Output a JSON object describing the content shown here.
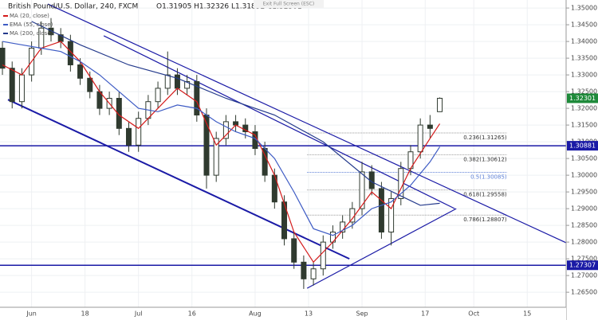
{
  "chart_data": {
    "type": "candlestick",
    "title": "British Pound/U.S. Dollar, 240, FXCM",
    "ohlc_header": "O1.31905 H1.32326 L1.31892 C1.32301",
    "button": "Exit Full Screen (ESC)",
    "x": [
      -6,
      -4,
      -2,
      0,
      2,
      4,
      6,
      8,
      10,
      12,
      14,
      16,
      18,
      20,
      22,
      24,
      26,
      28,
      30,
      32,
      34,
      36,
      38,
      40,
      42,
      44,
      46,
      48,
      50,
      52,
      54,
      56,
      58,
      60,
      62,
      64,
      66,
      68,
      70,
      72,
      74,
      76,
      78,
      80,
      82,
      84
    ],
    "open": [
      1.338,
      1.332,
      1.322,
      1.33,
      1.338,
      1.344,
      1.342,
      1.34,
      1.333,
      1.329,
      1.325,
      1.32,
      1.323,
      1.314,
      1.309,
      1.317,
      1.322,
      1.326,
      1.33,
      1.326,
      1.328,
      1.318,
      1.3,
      1.311,
      1.316,
      1.315,
      1.313,
      1.308,
      1.3,
      1.292,
      1.281,
      1.274,
      1.269,
      1.272,
      1.28,
      1.283,
      1.286,
      1.29,
      1.301,
      1.296,
      1.283,
      1.293,
      1.302,
      1.307,
      1.315,
      1.319
    ],
    "high": [
      1.34,
      1.334,
      1.332,
      1.34,
      1.346,
      1.347,
      1.344,
      1.342,
      1.335,
      1.331,
      1.327,
      1.325,
      1.325,
      1.316,
      1.319,
      1.324,
      1.328,
      1.337,
      1.332,
      1.33,
      1.33,
      1.32,
      1.313,
      1.318,
      1.318,
      1.317,
      1.315,
      1.31,
      1.302,
      1.294,
      1.283,
      1.276,
      1.274,
      1.282,
      1.285,
      1.288,
      1.292,
      1.304,
      1.303,
      1.298,
      1.295,
      1.304,
      1.309,
      1.317,
      1.318,
      1.32326
    ],
    "low": [
      1.33,
      1.32,
      1.32,
      1.328,
      1.336,
      1.34,
      1.338,
      1.331,
      1.327,
      1.323,
      1.318,
      1.318,
      1.312,
      1.307,
      1.307,
      1.315,
      1.32,
      1.324,
      1.324,
      1.324,
      1.316,
      1.296,
      1.298,
      1.309,
      1.313,
      1.311,
      1.306,
      1.298,
      1.29,
      1.279,
      1.272,
      1.266,
      1.267,
      1.27,
      1.278,
      1.281,
      1.284,
      1.288,
      1.294,
      1.281,
      1.279,
      1.291,
      1.3,
      1.305,
      1.311,
      1.31892
    ],
    "close": [
      1.332,
      1.322,
      1.33,
      1.338,
      1.344,
      1.342,
      1.34,
      1.333,
      1.329,
      1.325,
      1.32,
      1.323,
      1.314,
      1.309,
      1.317,
      1.322,
      1.326,
      1.33,
      1.326,
      1.328,
      1.318,
      1.3,
      1.311,
      1.316,
      1.315,
      1.313,
      1.308,
      1.3,
      1.292,
      1.281,
      1.274,
      1.269,
      1.272,
      1.28,
      1.283,
      1.286,
      1.29,
      1.301,
      1.296,
      1.283,
      1.293,
      1.302,
      1.307,
      1.315,
      1.314,
      1.32301
    ],
    "up_color": "#2f3a2f",
    "down_color": "#2f3a2f",
    "series": [
      {
        "name": "MA (20, close)",
        "color": "#d41a1a",
        "x": [
          -6,
          -2,
          2,
          6,
          10,
          14,
          18,
          22,
          26,
          30,
          34,
          38,
          42,
          46,
          50,
          54,
          58,
          62,
          66,
          70,
          74,
          78,
          82,
          84
        ],
        "values": [
          1.333,
          1.33,
          1.338,
          1.34,
          1.334,
          1.325,
          1.318,
          1.314,
          1.32,
          1.326,
          1.322,
          1.309,
          1.315,
          1.312,
          1.3,
          1.283,
          1.274,
          1.28,
          1.287,
          1.295,
          1.29,
          1.302,
          1.311,
          1.3154
        ]
      },
      {
        "name": "EMA (55, close)",
        "color": "#3d5bc4",
        "x": [
          -6,
          -2,
          2,
          6,
          10,
          14,
          18,
          22,
          26,
          30,
          34,
          38,
          42,
          46,
          50,
          54,
          58,
          62,
          66,
          70,
          74,
          78,
          82,
          84
        ],
        "values": [
          1.34,
          1.339,
          1.338,
          1.337,
          1.334,
          1.33,
          1.325,
          1.32,
          1.319,
          1.321,
          1.32,
          1.316,
          1.313,
          1.311,
          1.305,
          1.295,
          1.284,
          1.282,
          1.285,
          1.29,
          1.292,
          1.297,
          1.304,
          1.3085
        ]
      },
      {
        "name": "MA (200, close)",
        "color": "#243a8c",
        "x": [
          0,
          10,
          20,
          30,
          40,
          50,
          60,
          70,
          80,
          84
        ],
        "values": [
          1.346,
          1.339,
          1.333,
          1.329,
          1.323,
          1.318,
          1.31,
          1.298,
          1.291,
          1.2916
        ]
      }
    ],
    "trendlines": [
      {
        "x": [
          3.35,
          110
        ],
        "y": [
          1.3512,
          1.2798
        ]
      },
      {
        "x": [
          14.85,
          87.1
        ],
        "y": [
          1.3417,
          1.29
        ]
      },
      {
        "x": [
          -4.86,
          65.4
        ],
        "y": [
          1.3226,
          1.275
        ]
      },
      {
        "x": [
          56.7,
          87.4
        ],
        "y": [
          1.2662,
          1.29
        ]
      }
    ],
    "hlines": [
      1.30881,
      1.27307
    ],
    "last_price": 1.32301,
    "fib": {
      "x": [
        56.7,
        97.8
      ],
      "levels": [
        {
          "value": 1.31265,
          "label": "0.236(1.31265)"
        },
        {
          "value": 1.30612,
          "label": "0.382(1.30612)"
        },
        {
          "value": 1.30085,
          "label": "0.5(1.30085)"
        },
        {
          "value": 1.29558,
          "label": "0.618(1.29558)"
        },
        {
          "value": 1.28807,
          "label": "0.786(1.28807)"
        }
      ]
    },
    "xlim": [
      -6.5,
      110
    ],
    "xticks": [
      {
        "value": 0,
        "label": "Jun"
      },
      {
        "value": 11,
        "label": "18"
      },
      {
        "value": 22,
        "label": "Jul"
      },
      {
        "value": 33,
        "label": "16"
      },
      {
        "value": 46,
        "label": "Aug"
      },
      {
        "value": 57,
        "label": "13"
      },
      {
        "value": 68,
        "label": "Sep"
      },
      {
        "value": 81,
        "label": "17"
      },
      {
        "value": 91,
        "label": "Oct"
      },
      {
        "value": 102,
        "label": "15"
      }
    ],
    "ylim": [
      1.2567,
      1.3524
    ],
    "yticks": [
      {
        "value": 1.265,
        "label": "1.26500"
      },
      {
        "value": 1.27,
        "label": "1.27000"
      },
      {
        "value": 1.275,
        "label": "1.27500"
      },
      {
        "value": 1.28,
        "label": "1.28000"
      },
      {
        "value": 1.285,
        "label": "1.28500"
      },
      {
        "value": 1.29,
        "label": "1.29000"
      },
      {
        "value": 1.295,
        "label": "1.29500"
      },
      {
        "value": 1.3,
        "label": "1.30000"
      },
      {
        "value": 1.305,
        "label": "1.30500"
      },
      {
        "value": 1.31,
        "label": "1.31000"
      },
      {
        "value": 1.315,
        "label": "1.31500"
      },
      {
        "value": 1.32,
        "label": "1.32000"
      },
      {
        "value": 1.325,
        "label": "1.32500"
      },
      {
        "value": 1.33,
        "label": "1.33000"
      },
      {
        "value": 1.335,
        "label": "1.33500"
      },
      {
        "value": 1.34,
        "label": "1.34000"
      },
      {
        "value": 1.345,
        "label": "1.34500"
      },
      {
        "value": 1.35,
        "label": "1.35000"
      }
    ],
    "grid": true
  }
}
